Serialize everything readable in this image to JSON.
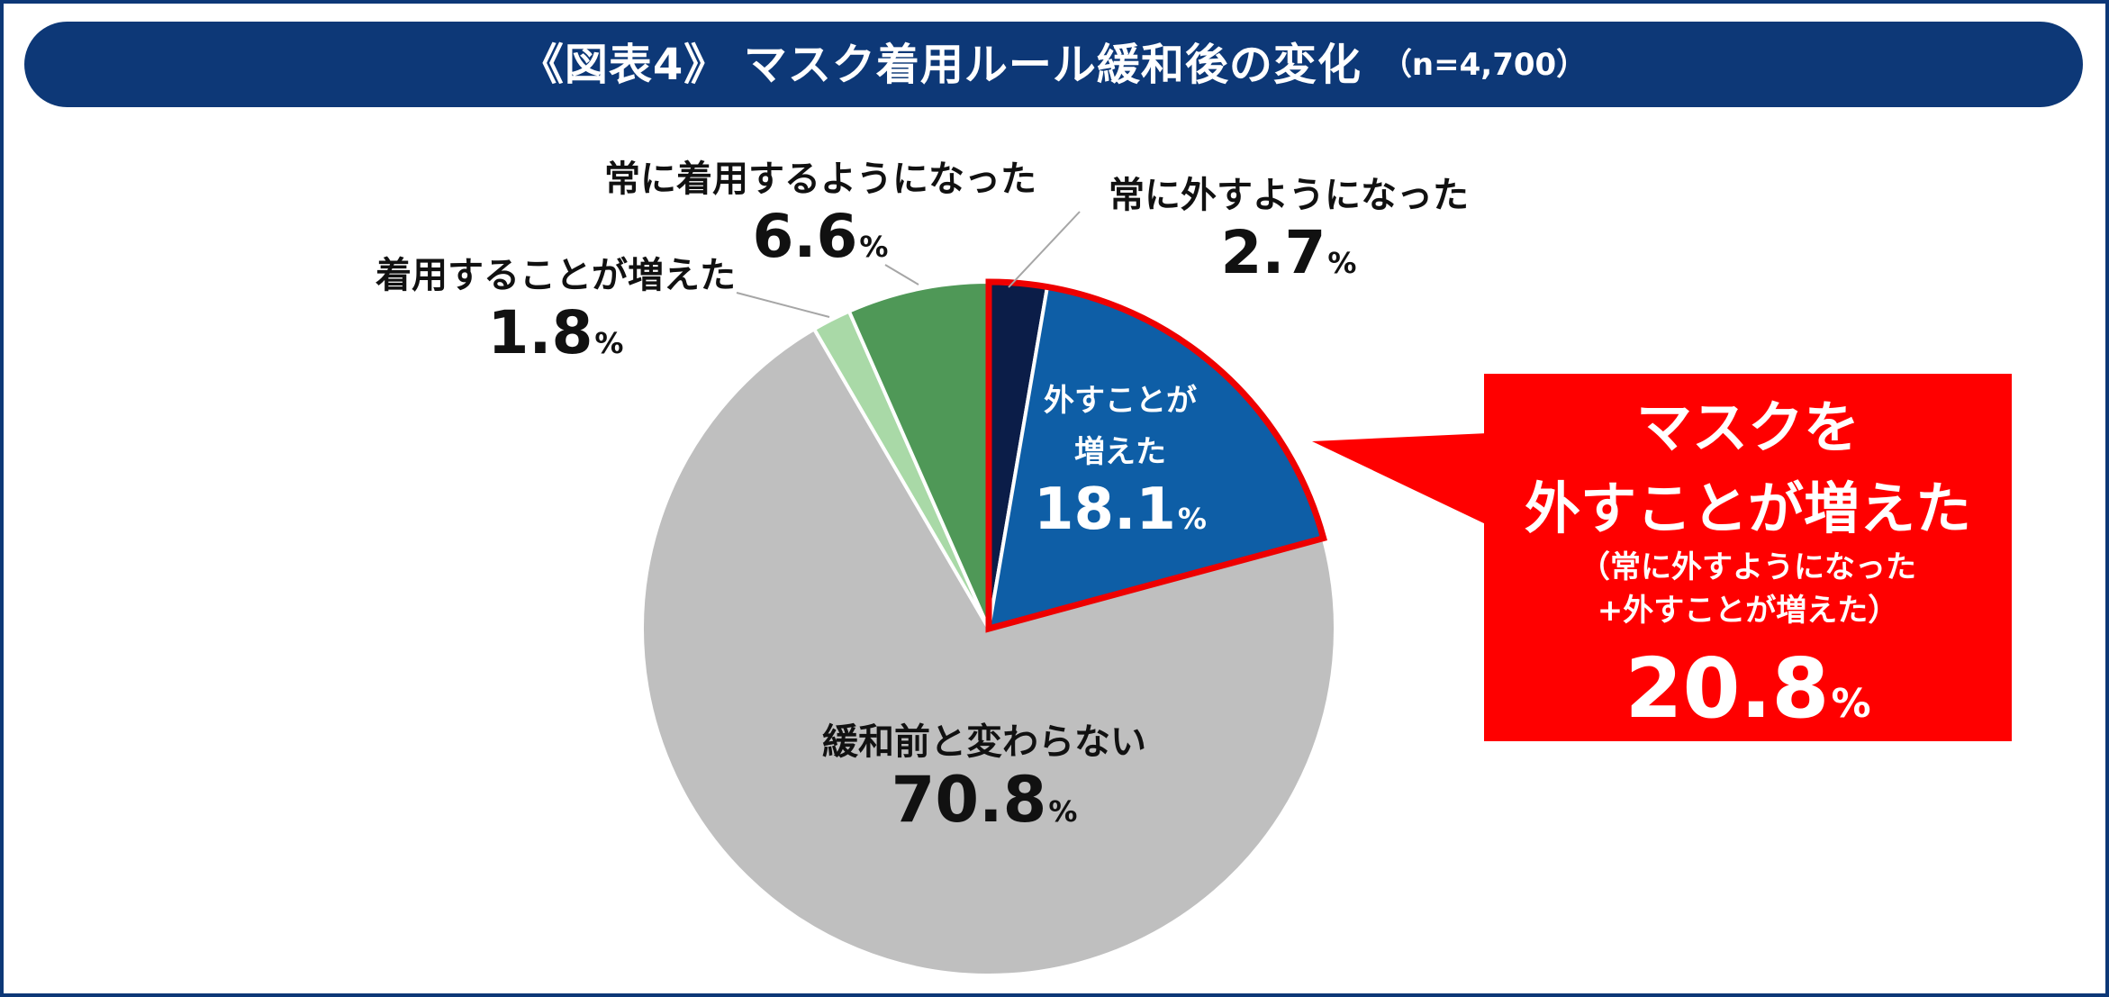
{
  "page": {
    "border_color": "#0d3877"
  },
  "header": {
    "bg_color": "#0d3877"
  },
  "chart_data": {
    "type": "pie",
    "title": "《図表4》 マスク着用ルール緩和後の変化",
    "n_note": "（n=4,700）",
    "unit": "%",
    "slices": [
      {
        "label_lines": [
          "常に外すようになった"
        ],
        "value": 2.7,
        "color": "#0b1d48"
      },
      {
        "label_lines": [
          "外すことが",
          "増えた"
        ],
        "value": 18.1,
        "color": "#0e5ea6"
      },
      {
        "label_lines": [
          "緩和前と変わらない"
        ],
        "value": 70.8,
        "color": "#bfbfbf"
      },
      {
        "label_lines": [
          "着用することが増えた"
        ],
        "value": 1.8,
        "color": "#a9d9a7"
      },
      {
        "label_lines": [
          "常に着用するようになった"
        ],
        "value": 6.6,
        "color": "#4f9857"
      }
    ],
    "highlight": {
      "slices": [
        0,
        1
      ],
      "outline_color": "#ee0000",
      "callout_color": "#ff0000",
      "lines": [
        "マスクを",
        "外すことが増えた",
        "（常に外すようになった",
        "+外すことが増えた）"
      ],
      "value": 20.8
    }
  }
}
